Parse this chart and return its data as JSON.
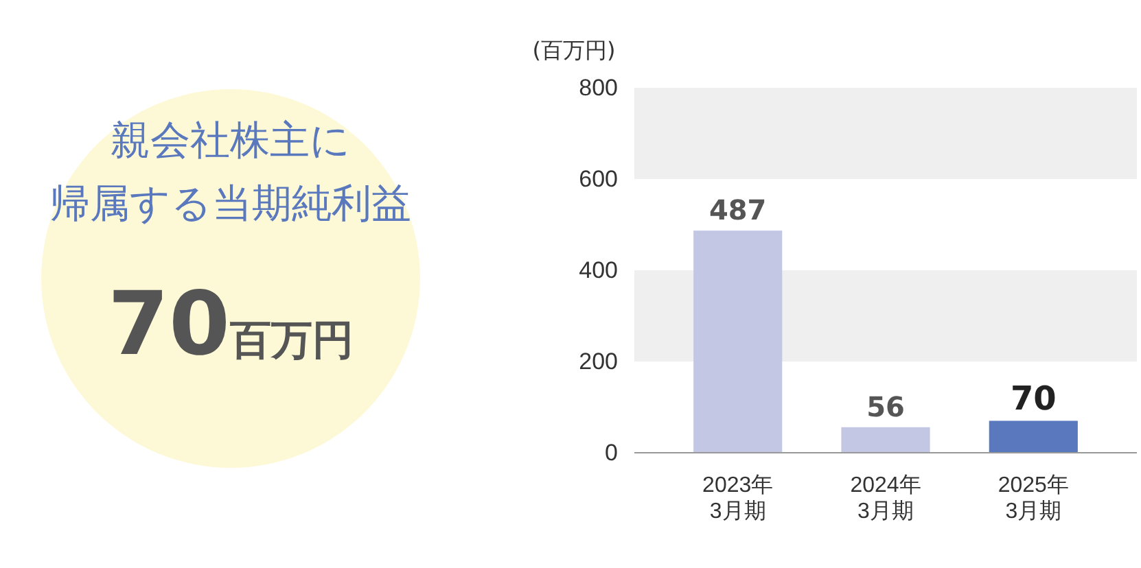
{
  "chart_data": {
    "type": "bar",
    "title": "親会社株主に帰属する当期純利益",
    "annotations": [
      "70百万円"
    ],
    "ylabel": "(百万円)",
    "categories": [
      "2023年\n3月期",
      "2024年\n3月期",
      "2025年\n3月期"
    ],
    "values": [
      487,
      56,
      70
    ],
    "colors": [
      "#c3c7e4",
      "#c3c7e4",
      "#5a78bd"
    ],
    "ylim": [
      0,
      800
    ],
    "yticks": [
      0,
      200,
      400,
      600,
      800
    ],
    "bands": [
      {
        "axis": "y",
        "from": 200,
        "to": 400,
        "color": "#efefef"
      },
      {
        "axis": "y",
        "from": 600,
        "to": 800,
        "color": "#efefef"
      }
    ],
    "data_labels": true
  }
}
